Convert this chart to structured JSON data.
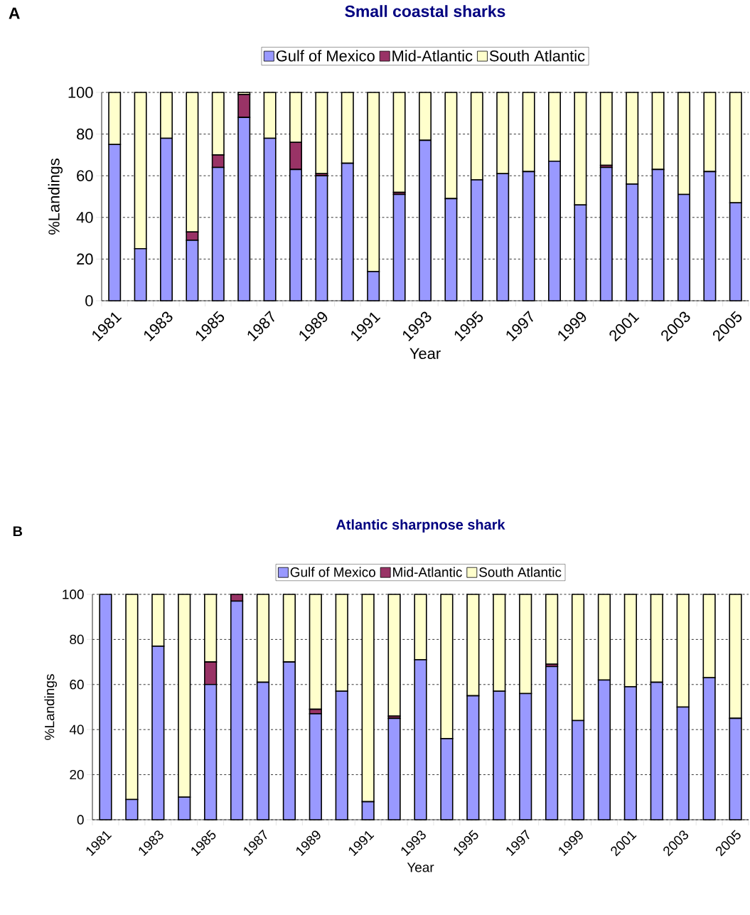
{
  "chart_data": [
    {
      "type": "bar",
      "stacked": true,
      "title": "Small coastal sharks",
      "xlabel": "Year",
      "ylabel": "%Landings",
      "annotations": [
        "A"
      ],
      "categories": [
        "1981",
        null,
        "1983",
        null,
        "1985",
        null,
        "1987",
        null,
        "1989",
        null,
        "1991",
        null,
        "1993",
        null,
        "1995",
        null,
        "1997",
        null,
        "1999",
        null,
        "2001",
        null,
        "2003",
        null,
        "2005"
      ],
      "series": [
        {
          "name": "Gulf of Mexico",
          "color": "#9999ff",
          "values": [
            75,
            25,
            78,
            29,
            64,
            88,
            78,
            63,
            60,
            66,
            14,
            51,
            77,
            49,
            58,
            61,
            62,
            67,
            46,
            64,
            56,
            63,
            51,
            62,
            47
          ]
        },
        {
          "name": "Mid-Atlantic",
          "color": "#993366",
          "values": [
            0,
            0,
            0,
            4,
            6,
            11,
            0,
            13,
            1,
            0,
            0,
            1,
            0,
            0,
            0,
            0,
            0,
            0,
            0,
            1,
            0,
            0,
            0,
            0,
            0
          ]
        },
        {
          "name": "South Atlantic",
          "color": "#ffffcc",
          "values": [
            25,
            75,
            22,
            67,
            30,
            1,
            22,
            24,
            39,
            34,
            86,
            48,
            23,
            51,
            42,
            39,
            38,
            33,
            54,
            35,
            44,
            37,
            49,
            38,
            53
          ]
        }
      ],
      "ylim": [
        0,
        100
      ],
      "yticks": [
        0,
        20,
        40,
        60,
        80,
        100
      ],
      "grid": "y",
      "legend": "top"
    },
    {
      "type": "bar",
      "stacked": true,
      "title": "Atlantic sharpnose shark",
      "xlabel": "Year",
      "ylabel": "%Landings",
      "annotations": [
        "B"
      ],
      "categories": [
        "1981",
        null,
        "1983",
        null,
        "1985",
        null,
        "1987",
        null,
        "1989",
        null,
        "1991",
        null,
        "1993",
        null,
        "1995",
        null,
        "1997",
        null,
        "1999",
        null,
        "2001",
        null,
        "2003",
        null,
        "2005"
      ],
      "series": [
        {
          "name": "Gulf of Mexico",
          "color": "#9999ff",
          "values": [
            100,
            9,
            77,
            10,
            60,
            97,
            61,
            70,
            47,
            57,
            8,
            45,
            71,
            36,
            55,
            57,
            56,
            68,
            44,
            62,
            59,
            61,
            50,
            63,
            45
          ]
        },
        {
          "name": "Mid-Atlantic",
          "color": "#993366",
          "values": [
            0,
            0,
            0,
            0,
            10,
            3,
            0,
            0,
            2,
            0,
            0,
            1,
            0,
            0,
            0,
            0,
            0,
            1,
            0,
            0,
            0,
            0,
            0,
            0,
            0
          ]
        },
        {
          "name": "South Atlantic",
          "color": "#ffffcc",
          "values": [
            0,
            91,
            23,
            90,
            30,
            0,
            39,
            30,
            51,
            43,
            92,
            54,
            29,
            64,
            45,
            43,
            44,
            31,
            56,
            38,
            41,
            39,
            50,
            37,
            55
          ]
        }
      ],
      "ylim": [
        0,
        100
      ],
      "yticks": [
        0,
        20,
        40,
        60,
        80,
        100
      ],
      "grid": "y",
      "legend": "top"
    }
  ]
}
